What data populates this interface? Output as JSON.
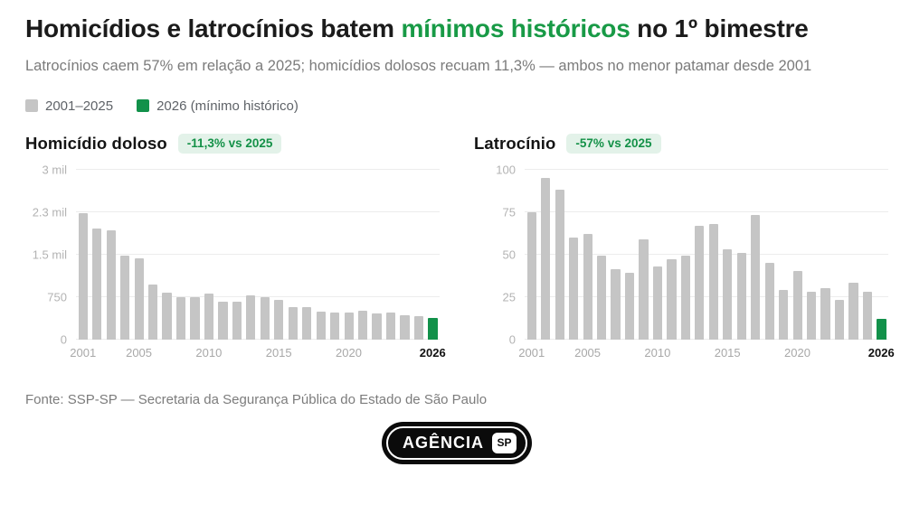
{
  "header": {
    "title_prefix": "Homicídios e latrocínios batem ",
    "title_highlight": "mínimos históricos",
    "title_suffix": " no 1º bimestre",
    "subtitle": "Latrocínios caem 57% em relação a 2025; homicídios dolosos recuam 11,3% — ambos no menor patamar desde 2001"
  },
  "colors": {
    "accent_green": "#12914a",
    "title_highlight_green": "#189a46",
    "badge_bg": "#e3f2e9",
    "badge_text": "#149148",
    "bar_gray": "#c5c5c5",
    "gridline": "#ececec"
  },
  "legend": {
    "items": [
      {
        "label": "2001–2025",
        "color": "#c5c5c5"
      },
      {
        "label": "2026 (mínimo histórico)",
        "color": "#12914a"
      }
    ]
  },
  "chart_data": [
    {
      "type": "bar",
      "title": "Homicídio doloso",
      "badge": "-11,3% vs 2025",
      "x": [
        2001,
        2002,
        2003,
        2004,
        2005,
        2006,
        2007,
        2008,
        2009,
        2010,
        2011,
        2012,
        2013,
        2014,
        2015,
        2016,
        2017,
        2018,
        2019,
        2020,
        2021,
        2022,
        2023,
        2024,
        2025,
        2026
      ],
      "values": [
        2230,
        1950,
        1925,
        1480,
        1430,
        965,
        815,
        750,
        740,
        805,
        670,
        660,
        780,
        745,
        700,
        570,
        570,
        490,
        470,
        470,
        505,
        460,
        470,
        420,
        415,
        368
      ],
      "ylim": [
        0,
        3000
      ],
      "yticks": [
        {
          "value": 0,
          "label": "0"
        },
        {
          "value": 750,
          "label": "750"
        },
        {
          "value": 1500,
          "label": "1.5 mil"
        },
        {
          "value": 2250,
          "label": "2.3 mil"
        },
        {
          "value": 3000,
          "label": "3 mil"
        }
      ],
      "xticks": [
        2001,
        2005,
        2010,
        2015,
        2020,
        2026
      ],
      "highlight_year": 2026,
      "bar_color": "#c5c5c5",
      "highlight_color": "#12914a",
      "grid": true,
      "legend_position": "top"
    },
    {
      "type": "bar",
      "title": "Latrocínio",
      "badge": "-57% vs 2025",
      "x": [
        2001,
        2002,
        2003,
        2004,
        2005,
        2006,
        2007,
        2008,
        2009,
        2010,
        2011,
        2012,
        2013,
        2014,
        2015,
        2016,
        2017,
        2018,
        2019,
        2020,
        2021,
        2022,
        2023,
        2024,
        2025,
        2026
      ],
      "values": [
        75,
        95,
        88,
        60,
        62,
        49,
        41,
        39,
        59,
        43,
        47,
        49,
        67,
        68,
        53,
        51,
        73,
        45,
        29,
        40,
        28,
        30,
        23,
        33,
        28,
        12
      ],
      "ylim": [
        0,
        100
      ],
      "yticks": [
        {
          "value": 0,
          "label": "0"
        },
        {
          "value": 25,
          "label": "25"
        },
        {
          "value": 50,
          "label": "50"
        },
        {
          "value": 75,
          "label": "75"
        },
        {
          "value": 100,
          "label": "100"
        }
      ],
      "xticks": [
        2001,
        2005,
        2010,
        2015,
        2020,
        2026
      ],
      "highlight_year": 2026,
      "bar_color": "#c5c5c5",
      "highlight_color": "#12914a",
      "grid": true,
      "legend_position": "top"
    }
  ],
  "footer": {
    "source": "Fonte: SSP-SP — Secretaria da Segurança Pública do Estado de São Paulo"
  },
  "logo": {
    "text": "AGÊNCIA",
    "icon_text": "SP"
  }
}
